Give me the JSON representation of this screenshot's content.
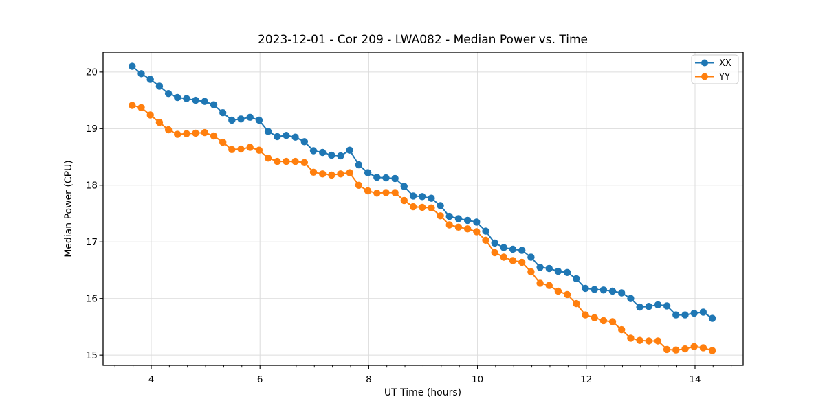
{
  "figure": {
    "background": "#ffffff"
  },
  "chart_data": {
    "type": "line",
    "title": "2023-12-01 - Cor 209 - LWA082 - Median Power vs. Time",
    "xlabel": "UT Time (hours)",
    "ylabel": "Median Power (CPU)",
    "xlim": [
      3.115,
      14.885
    ],
    "ylim": [
      14.82,
      20.35
    ],
    "x_major_ticks": [
      4,
      6,
      8,
      10,
      12,
      14
    ],
    "x_minor_tick_step": 0.3333,
    "y_major_ticks": [
      15,
      16,
      17,
      18,
      19,
      20
    ],
    "grid": "major ticks only, both axes",
    "grid_color": "#dcdcdc",
    "spine_color": "#000000",
    "legend": {
      "position": "upper-right",
      "entries": [
        "XX",
        "YY"
      ]
    },
    "x": [
      3.65,
      3.817,
      3.983,
      4.15,
      4.317,
      4.483,
      4.65,
      4.817,
      4.983,
      5.15,
      5.317,
      5.483,
      5.65,
      5.817,
      5.983,
      6.15,
      6.317,
      6.483,
      6.65,
      6.817,
      6.983,
      7.15,
      7.317,
      7.483,
      7.65,
      7.817,
      7.983,
      8.15,
      8.317,
      8.483,
      8.65,
      8.817,
      8.983,
      9.15,
      9.317,
      9.483,
      9.65,
      9.817,
      9.983,
      10.15,
      10.317,
      10.483,
      10.65,
      10.817,
      10.983,
      11.15,
      11.317,
      11.483,
      11.65,
      11.817,
      11.983,
      12.15,
      12.317,
      12.483,
      12.65,
      12.817,
      12.983,
      13.15,
      13.317,
      13.483,
      13.65,
      13.817,
      13.983,
      14.15,
      14.317
    ],
    "series": [
      {
        "name": "XX",
        "color": "#1f77b4",
        "marker": "circle",
        "values": [
          20.1,
          19.97,
          19.87,
          19.75,
          19.62,
          19.55,
          19.53,
          19.5,
          19.48,
          19.42,
          19.28,
          19.15,
          19.17,
          19.2,
          19.15,
          18.95,
          18.86,
          18.88,
          18.85,
          18.77,
          18.61,
          18.58,
          18.53,
          18.52,
          18.62,
          18.36,
          18.22,
          18.14,
          18.13,
          18.12,
          17.98,
          17.81,
          17.8,
          17.77,
          17.64,
          17.45,
          17.41,
          17.38,
          17.35,
          17.19,
          16.98,
          16.9,
          16.87,
          16.85,
          16.73,
          16.55,
          16.53,
          16.48,
          16.46,
          16.35,
          16.18,
          16.16,
          16.15,
          16.13,
          16.1,
          16.0,
          15.85,
          15.86,
          15.89,
          15.87,
          15.71,
          15.71,
          15.74,
          15.76,
          15.65
        ]
      },
      {
        "name": "YY",
        "color": "#ff7f0e",
        "marker": "circle",
        "values": [
          19.41,
          19.37,
          19.24,
          19.11,
          18.98,
          18.9,
          18.91,
          18.92,
          18.93,
          18.87,
          18.76,
          18.63,
          18.64,
          18.67,
          18.62,
          18.48,
          18.42,
          18.42,
          18.42,
          18.4,
          18.23,
          18.2,
          18.18,
          18.2,
          18.22,
          18.0,
          17.9,
          17.86,
          17.87,
          17.87,
          17.73,
          17.62,
          17.61,
          17.6,
          17.46,
          17.3,
          17.26,
          17.23,
          17.18,
          17.03,
          16.81,
          16.73,
          16.67,
          16.64,
          16.47,
          16.27,
          16.23,
          16.13,
          16.07,
          15.91,
          15.71,
          15.66,
          15.61,
          15.59,
          15.45,
          15.3,
          15.26,
          15.25,
          15.25,
          15.1,
          15.09,
          15.11,
          15.15,
          15.13,
          15.08
        ]
      }
    ]
  }
}
